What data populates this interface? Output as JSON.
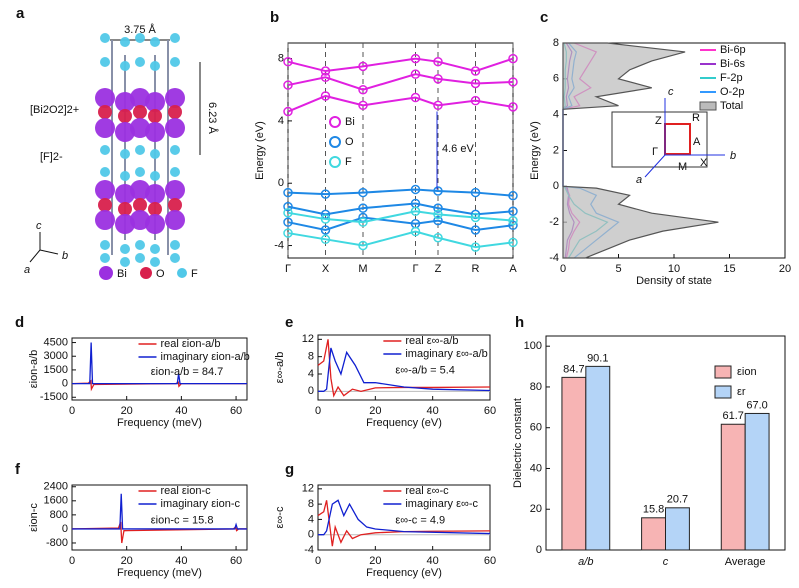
{
  "structure": {
    "label": "a",
    "lattice_a": "3.75 Å",
    "lattice_c": "6.23 Å",
    "layer_1": "[Bi2O2]2+",
    "layer_2": "[F]2-",
    "axes": [
      "c",
      "b",
      "a"
    ],
    "legend": [
      "Bi",
      "O",
      "F"
    ]
  },
  "inset": {
    "axes": [
      "c",
      "b",
      "a"
    ],
    "points": [
      "Z",
      "R",
      "Γ",
      "A",
      "M",
      "X"
    ]
  },
  "chart_data": [
    {
      "type": "band",
      "label": "b",
      "y_label": "Energy (eV)",
      "annotation": "4.6 eV",
      "x": [
        0,
        1,
        2,
        3.4,
        4,
        5,
        6
      ],
      "xlim": [
        0,
        6
      ],
      "xticks": [
        {
          "value": 0,
          "label": "Γ"
        },
        {
          "value": 1,
          "label": "X"
        },
        {
          "value": 2,
          "label": "M"
        },
        {
          "value": 3.4,
          "label": "Γ"
        },
        {
          "value": 4,
          "label": "Z"
        },
        {
          "value": 5,
          "label": "R"
        },
        {
          "value": 6,
          "label": "A"
        }
      ],
      "ylim": [
        -4.8,
        9
      ],
      "yticks": [
        -4,
        0,
        4,
        8
      ],
      "series": [
        {
          "name": "Bi",
          "color": "#e020e0",
          "bands": [
            [
              7.8,
              7.2,
              7.5,
              8,
              7.8,
              7.2,
              8
            ],
            [
              6.3,
              6.8,
              6.0,
              7.0,
              6.7,
              6.4,
              6.5
            ],
            [
              4.6,
              5.6,
              5.0,
              5.5,
              5.0,
              5.3,
              4.9
            ]
          ]
        },
        {
          "name": "O",
          "color": "#1e88e5",
          "bands": [
            [
              -0.6,
              -0.7,
              -0.6,
              -0.4,
              -0.5,
              -0.6,
              -0.8
            ],
            [
              -1.5,
              -2.0,
              -1.6,
              -1.3,
              -1.6,
              -2.0,
              -1.8
            ],
            [
              -2.5,
              -3.0,
              -2.2,
              -2.6,
              -2.4,
              -3.0,
              -2.7
            ]
          ]
        },
        {
          "name": "F",
          "color": "#40d8e0",
          "bands": [
            [
              -1.9,
              -2.3,
              -2.5,
              -1.8,
              -2.0,
              -2.2,
              -2.4
            ],
            [
              -3.2,
              -3.6,
              -4.0,
              -3.1,
              -3.5,
              -4.1,
              -3.8
            ]
          ]
        }
      ]
    },
    {
      "type": "dos",
      "label": "c",
      "x_label": "Density of state",
      "y_label": "Energy (eV)",
      "energy": [
        -4,
        -3.5,
        -3,
        -2.5,
        -2,
        -1.5,
        -1,
        -0.5,
        -0.1,
        0,
        4.3,
        4.5,
        5,
        5.5,
        6,
        6.5,
        7,
        7.5,
        8
      ],
      "xlim": [
        0,
        20
      ],
      "xticks": [
        0,
        5,
        10,
        15,
        20
      ],
      "ylim": [
        -4,
        8
      ],
      "yticks": [
        -4,
        -2,
        0,
        2,
        4,
        6,
        8
      ],
      "series": [
        {
          "name": "Bi-6p",
          "color": "#ff33cc",
          "values": [
            0.3,
            0.5,
            0.6,
            1,
            1.5,
            0.8,
            0.5,
            0.6,
            0.3,
            0,
            0,
            1.5,
            1,
            2.5,
            1.5,
            2,
            2.5,
            3,
            1
          ]
        },
        {
          "name": "Bi-6s",
          "color": "#9933cc",
          "values": [
            0.2,
            0.3,
            0.4,
            0.8,
            1,
            0.6,
            0.4,
            0.5,
            0.4,
            0,
            0,
            0.4,
            0.3,
            0.5,
            0.4,
            0.5,
            0.6,
            0.8,
            0.3
          ]
        },
        {
          "name": "F-2p",
          "color": "#33cccc",
          "values": [
            0.5,
            1,
            1.5,
            3,
            4,
            2,
            1,
            0.5,
            0.2,
            0,
            0,
            0.2,
            0.1,
            0.2,
            0.2,
            0.2,
            0.3,
            0.3,
            0.1
          ]
        },
        {
          "name": "O-2p",
          "color": "#3399ff",
          "values": [
            1,
            2,
            3,
            4,
            5,
            3,
            2.5,
            3,
            1.5,
            0,
            0,
            0.8,
            0.5,
            1,
            0.8,
            0.9,
            1,
            1.2,
            0.5
          ]
        },
        {
          "name": "Total",
          "color": "#999999",
          "values": [
            2,
            4,
            6,
            9,
            14,
            8,
            5,
            6,
            3,
            0,
            0,
            5,
            3,
            8,
            5,
            6,
            8,
            11,
            4
          ]
        }
      ]
    },
    {
      "type": "line",
      "label": "d",
      "x_label": "Frequency (meV)",
      "y_label": "εion-a/b",
      "annotation": "εion-a/b = 84.7",
      "xlim": [
        0,
        64
      ],
      "xticks": [
        0,
        20,
        40,
        60
      ],
      "ylim": [
        -1800,
        5000
      ],
      "yticks": [
        -1500,
        0,
        1500,
        3000,
        4500
      ],
      "series": [
        {
          "name": "real εion-a/b",
          "color": "#e02020",
          "x": [
            0,
            6,
            6.9,
            7.1,
            8,
            38,
            38.9,
            39.1,
            40,
            64
          ],
          "values": [
            0,
            50,
            300,
            -600,
            -100,
            0,
            150,
            -300,
            0,
            0
          ]
        },
        {
          "name": "imaginary εion-a/b",
          "color": "#1020d0",
          "x": [
            0,
            6.5,
            7,
            7.5,
            38.5,
            39,
            39.5,
            64
          ],
          "values": [
            0,
            0,
            4500,
            0,
            0,
            1100,
            0,
            0
          ]
        }
      ]
    },
    {
      "type": "line",
      "label": "e",
      "x_label": "Frequency (eV)",
      "y_label": "ε∞-a/b",
      "annotation": "ε∞-a/b = 5.4",
      "xlim": [
        0,
        60
      ],
      "xticks": [
        0,
        20,
        40,
        60
      ],
      "ylim": [
        -2,
        13
      ],
      "yticks": [
        0,
        4,
        8,
        12
      ],
      "series": [
        {
          "name": "real ε∞-a/b",
          "color": "#e02020",
          "x": [
            0,
            2,
            3.5,
            4.5,
            5.5,
            7,
            9,
            12,
            15,
            20,
            30,
            40,
            60
          ],
          "values": [
            6,
            7,
            12,
            3,
            -1,
            1,
            -1,
            0.5,
            0,
            0.8,
            0.9,
            0.9,
            1
          ]
        },
        {
          "name": "imaginary ε∞-a/b",
          "color": "#1020d0",
          "x": [
            0,
            2,
            3,
            4.5,
            6,
            8,
            10,
            13,
            16,
            20,
            30,
            40,
            60
          ],
          "values": [
            0,
            0,
            0.5,
            10,
            7,
            4,
            9,
            6,
            2,
            2,
            1,
            0.5,
            0.2
          ]
        }
      ]
    },
    {
      "type": "line",
      "label": "f",
      "x_label": "Frequency (meV)",
      "y_label": "εion-c",
      "annotation": "εion-c = 15.8",
      "xlim": [
        0,
        64
      ],
      "xticks": [
        0,
        20,
        40,
        60
      ],
      "ylim": [
        -1200,
        2500
      ],
      "yticks": [
        -800,
        0,
        800,
        1600,
        2400
      ],
      "series": [
        {
          "name": "real εion-c",
          "color": "#e02020",
          "x": [
            0,
            17,
            17.8,
            18.2,
            19,
            59,
            59.8,
            60.2,
            61,
            64
          ],
          "values": [
            0,
            50,
            400,
            -800,
            -100,
            0,
            100,
            -100,
            0,
            0
          ]
        },
        {
          "name": "imaginary εion-c",
          "color": "#1020d0",
          "x": [
            0,
            17.5,
            18,
            18.5,
            59.5,
            60,
            60.5,
            64
          ],
          "values": [
            0,
            0,
            2000,
            0,
            0,
            250,
            0,
            0
          ]
        }
      ]
    },
    {
      "type": "line",
      "label": "g",
      "x_label": "Frequency (eV)",
      "y_label": "ε∞-c",
      "annotation": "ε∞-c = 4.9",
      "xlim": [
        0,
        60
      ],
      "xticks": [
        0,
        20,
        40,
        60
      ],
      "ylim": [
        -4,
        13
      ],
      "yticks": [
        -4,
        0,
        4,
        8,
        12
      ],
      "series": [
        {
          "name": "real ε∞-c",
          "color": "#e02020",
          "x": [
            0,
            2,
            3,
            4,
            5,
            6,
            8,
            10,
            12,
            15,
            20,
            30,
            40,
            60
          ],
          "values": [
            5,
            6,
            9,
            3,
            -3,
            2,
            -2,
            1,
            -1,
            0,
            0.5,
            0.8,
            0.9,
            1
          ]
        },
        {
          "name": "imaginary ε∞-c",
          "color": "#1020d0",
          "x": [
            0,
            2,
            3,
            5,
            7,
            9,
            11,
            14,
            17,
            20,
            30,
            60
          ],
          "values": [
            0,
            0,
            1,
            8,
            9,
            5,
            8,
            4,
            2,
            1.5,
            0.8,
            0.3
          ]
        }
      ]
    },
    {
      "type": "bar",
      "label": "h",
      "y_label": "Dielectric constant",
      "categories": [
        "a/b",
        "c",
        "Average"
      ],
      "ylim": [
        0,
        105
      ],
      "yticks": [
        0,
        20,
        40,
        60,
        80,
        100
      ],
      "series": [
        {
          "name": "εion",
          "color": "#f7b4b4",
          "values": [
            84.7,
            15.8,
            61.7
          ],
          "value_labels": [
            "84.7",
            "15.8",
            "61.7"
          ]
        },
        {
          "name": "εr",
          "color": "#b4d4f7",
          "values": [
            90.1,
            20.7,
            67.0
          ],
          "value_labels": [
            "90.1",
            "20.7",
            "67.0"
          ]
        }
      ]
    }
  ]
}
